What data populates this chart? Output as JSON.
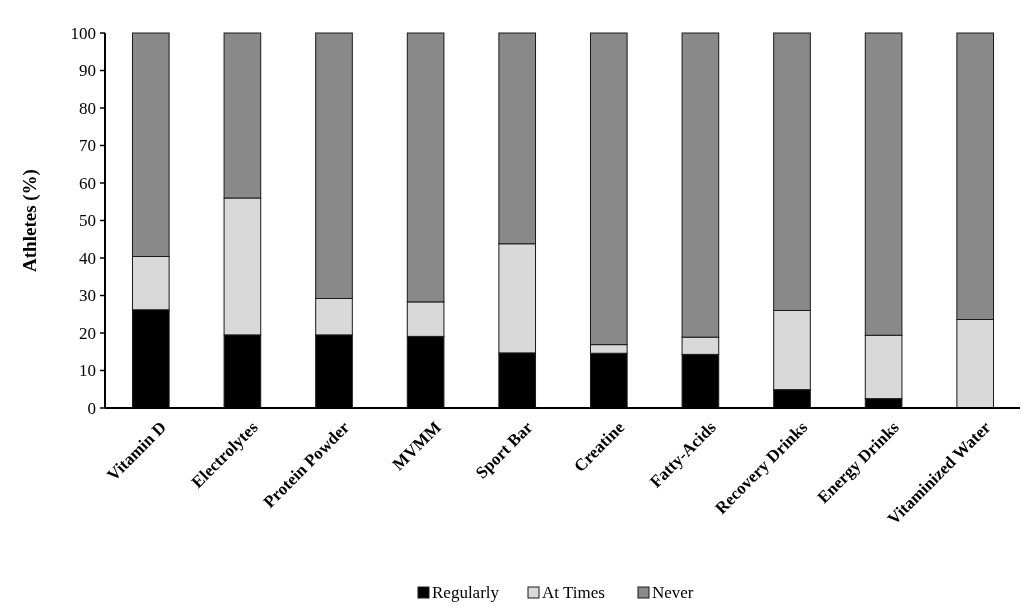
{
  "chart_data": {
    "type": "bar",
    "stacked": true,
    "ylabel": "Athletes (%)",
    "categories": [
      "Vitamin D",
      "Electrolytes",
      "Protein Powder",
      "MVMM",
      "Sport Bar",
      "Creatine",
      "Fatty-Acids",
      "Recovery Drinks",
      "Energy Drinks",
      "Vitaminized Water"
    ],
    "series": [
      {
        "name": "Regularly",
        "color": "#000000",
        "values": [
          26.2,
          19.5,
          19.5,
          19.1,
          14.7,
          14.6,
          14.3,
          4.9,
          2.5,
          0
        ]
      },
      {
        "name": "At Times",
        "color": "#d9d9d9",
        "values": [
          14.2,
          36.5,
          9.7,
          9.2,
          29.1,
          2.3,
          4.6,
          21.1,
          16.9,
          23.6
        ]
      },
      {
        "name": "Never",
        "color": "#898989",
        "values": [
          59.6,
          44.0,
          70.8,
          71.7,
          56.2,
          83.1,
          81.1,
          74.0,
          80.6,
          76.4
        ]
      }
    ],
    "ylim": [
      0,
      100
    ],
    "yticks": [
      0,
      10,
      20,
      30,
      40,
      50,
      60,
      70,
      80,
      90,
      100
    ],
    "grid": false,
    "legend": "bottom"
  }
}
